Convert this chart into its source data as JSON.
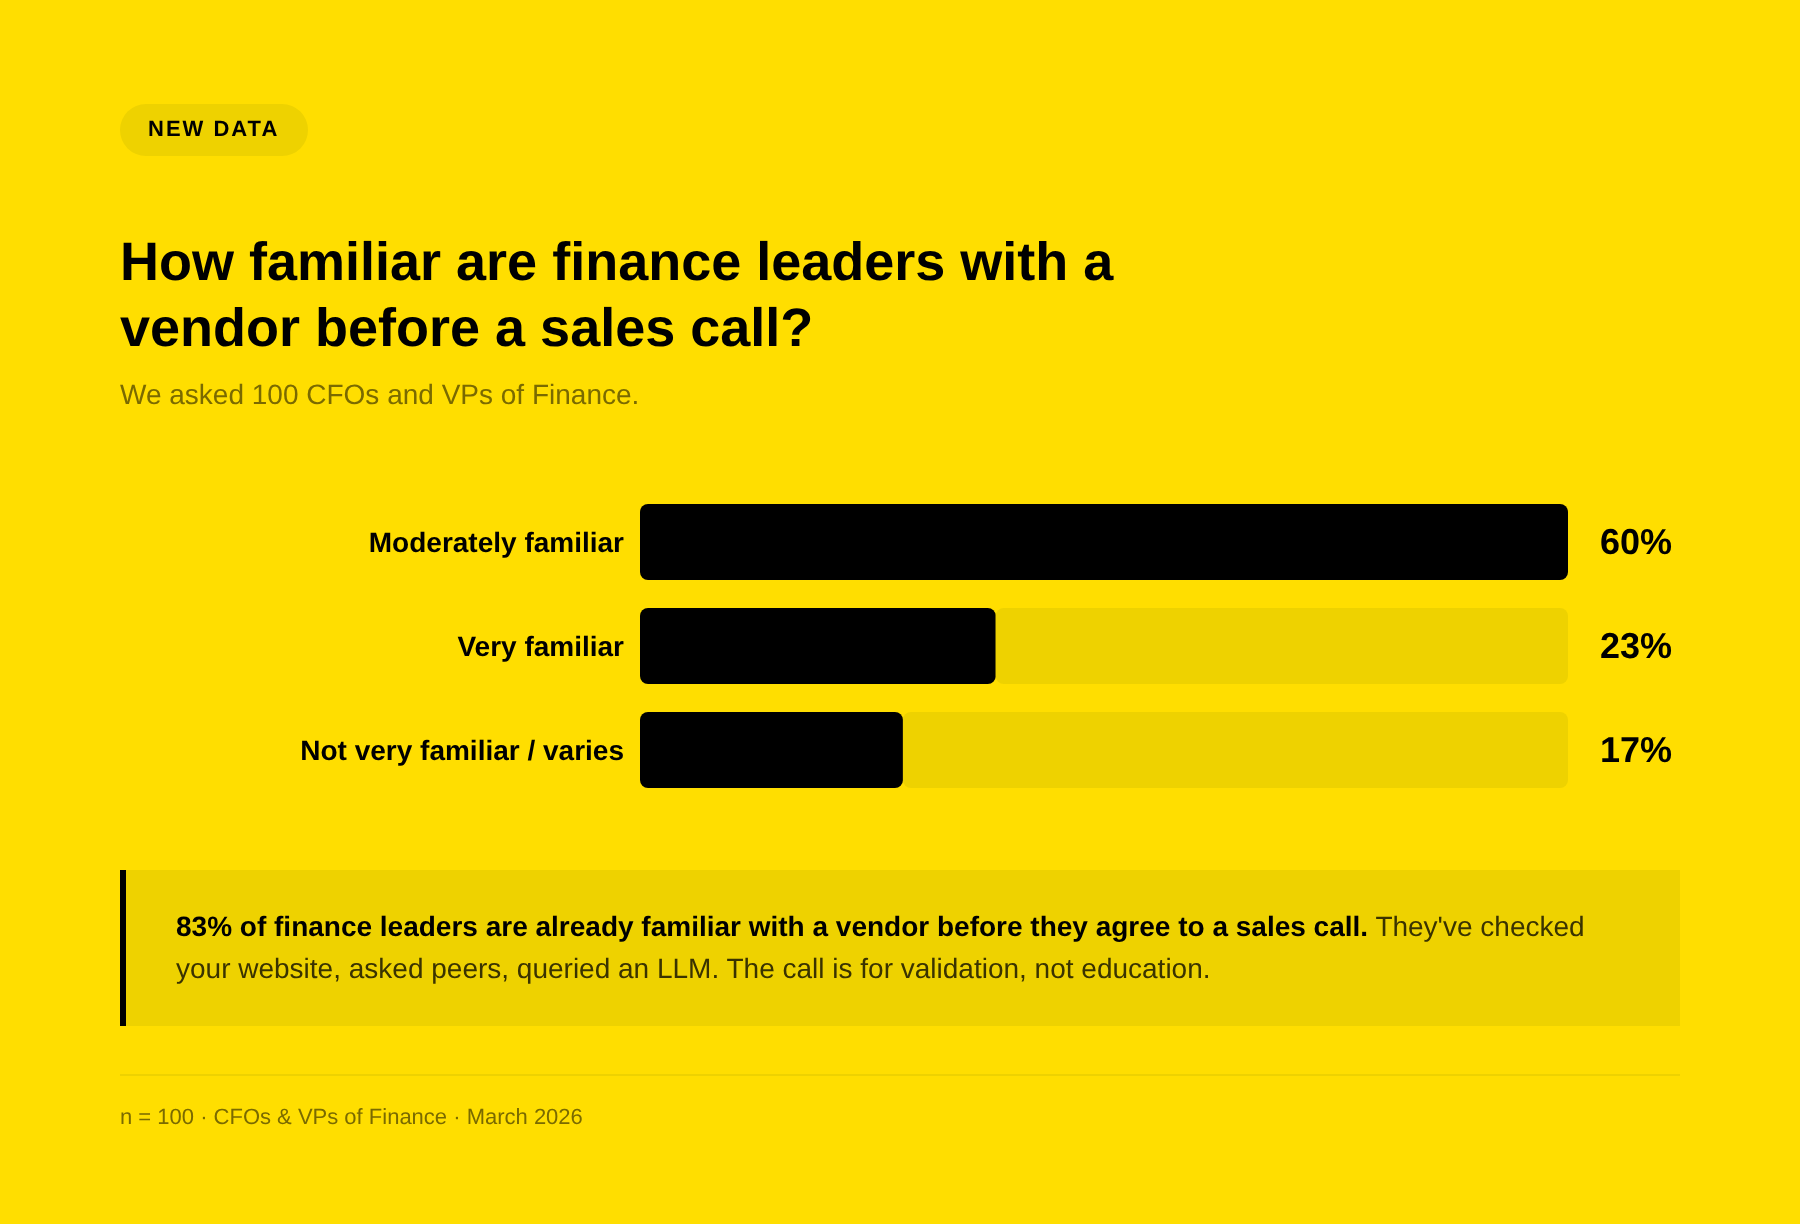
{
  "chart_data": {
    "type": "bar",
    "orientation": "horizontal",
    "title": "How familiar are finance leaders with a vendor before a sales call?",
    "subtitle": "We asked 100 CFOs and VPs of Finance.",
    "categories": [
      "Moderately familiar",
      "Very familiar",
      "Not very familiar / varies"
    ],
    "stacked": true,
    "series": [
      {
        "color": "#000000",
        "values": [
          60,
          23,
          17
        ],
        "value_labels": [
          "60%",
          "23%",
          "17%"
        ]
      },
      {
        "color": "#eed200",
        "values": [
          null,
          37,
          43
        ]
      }
    ],
    "xlim": [
      0,
      60
    ],
    "tick_labels": "y",
    "annotations": [
      "NEW DATA",
      "83% of finance leaders are already familiar with a vendor before they agree to a sales call.",
      "They've checked your website, asked peers, queried an LLM. The call is for validation, not education.",
      "n = 100 · CFOs & VPs of Finance · March 2026"
    ]
  }
}
